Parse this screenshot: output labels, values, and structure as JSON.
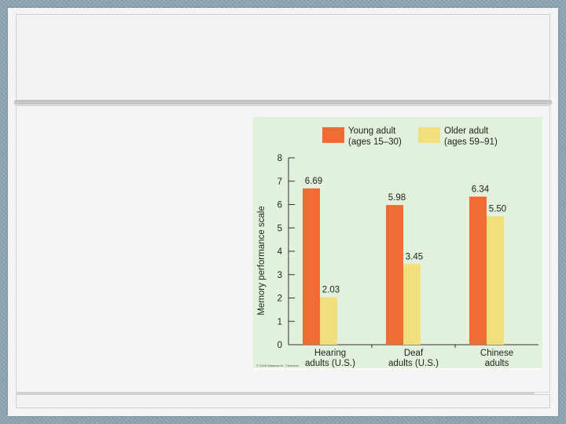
{
  "chart_data": {
    "type": "bar",
    "categories": [
      [
        "Hearing",
        "adults (U.S.)"
      ],
      [
        "Deaf",
        "adults (U.S.)"
      ],
      [
        "Chinese",
        "adults"
      ]
    ],
    "series": [
      {
        "name": "Young adult (ages 15–30)",
        "legend_lines": [
          "Young adult",
          "(ages 15–30)"
        ],
        "values": [
          6.69,
          5.98,
          6.34
        ],
        "value_labels": [
          "6.69",
          "5.98",
          "6.34"
        ],
        "color": "#f26b35"
      },
      {
        "name": "Older adult (ages 59–91)",
        "legend_lines": [
          "Older adult",
          "(ages 59–91)"
        ],
        "values": [
          2.03,
          3.45,
          5.5
        ],
        "value_labels": [
          "2.03",
          "3.45",
          "5.50"
        ],
        "color": "#f0df7a"
      }
    ],
    "ylabel": "Memory performance scale",
    "ylim": [
      0,
      8
    ],
    "yticks": [
      0,
      1,
      2,
      3,
      4,
      5,
      6,
      7,
      8
    ],
    "grid": false,
    "legend": "top",
    "plot_background": "#e2f1dc",
    "copyright": "© 2008 Wadsworth - Thomson"
  }
}
